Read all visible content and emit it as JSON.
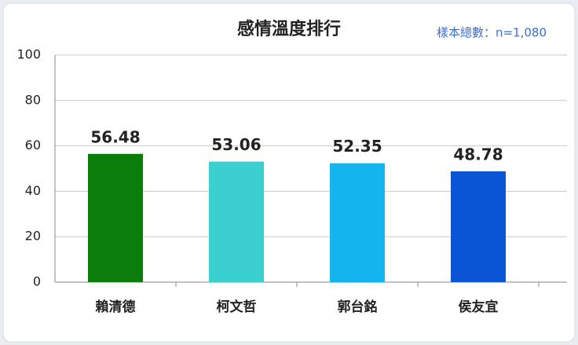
{
  "chart_data": {
    "type": "bar",
    "title": "感情溫度排行",
    "subtitle": "樣本總數：n=1,080",
    "categories": [
      "賴清德",
      "柯文哲",
      "郭台銘",
      "侯友宜"
    ],
    "values": [
      56.48,
      53.06,
      52.35,
      48.78
    ],
    "colors": [
      "#0a7d0a",
      "#3ccfcf",
      "#14b4ee",
      "#0a55d6"
    ],
    "ylim": [
      0,
      100
    ],
    "yticks": [
      0,
      20,
      40,
      60,
      80,
      100
    ],
    "grid": true
  }
}
